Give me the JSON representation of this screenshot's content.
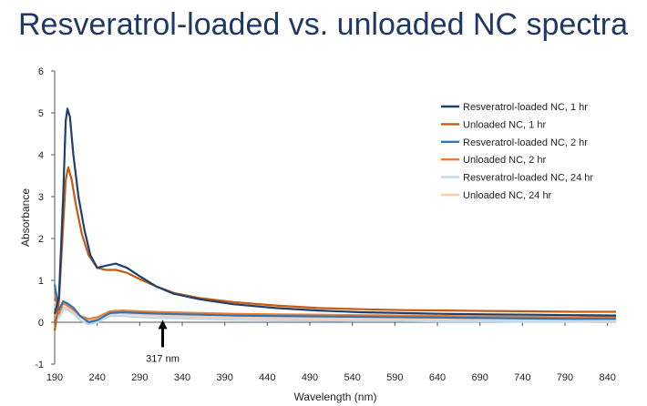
{
  "slide": {
    "title": "Resveratrol-loaded vs. unloaded NC spectra"
  },
  "chart_data": {
    "type": "line",
    "title": "",
    "xlabel": "Wavelength (nm)",
    "ylabel": "Absorbance",
    "xlim": [
      190,
      850
    ],
    "ylim": [
      -1,
      6
    ],
    "xticks": [
      190,
      240,
      290,
      340,
      390,
      440,
      490,
      540,
      590,
      640,
      690,
      740,
      790,
      840
    ],
    "yticks": [
      -1,
      0,
      1,
      2,
      3,
      4,
      5,
      6
    ],
    "grid": false,
    "legend_position": "top-right",
    "annotations": [
      {
        "text": "317 nm",
        "x": 317,
        "y": 0.1
      }
    ],
    "series": [
      {
        "name": "Resveratrol-loaded NC, 1 hr",
        "color": "#1f3f6e",
        "points": [
          [
            190,
            0.2
          ],
          [
            195,
            0.6
          ],
          [
            200,
            3.0
          ],
          [
            203,
            4.8
          ],
          [
            205,
            5.1
          ],
          [
            208,
            4.9
          ],
          [
            212,
            4.0
          ],
          [
            218,
            3.0
          ],
          [
            225,
            2.2
          ],
          [
            232,
            1.6
          ],
          [
            240,
            1.3
          ],
          [
            250,
            1.35
          ],
          [
            262,
            1.4
          ],
          [
            275,
            1.3
          ],
          [
            290,
            1.1
          ],
          [
            310,
            0.85
          ],
          [
            330,
            0.68
          ],
          [
            360,
            0.55
          ],
          [
            400,
            0.43
          ],
          [
            450,
            0.34
          ],
          [
            500,
            0.28
          ],
          [
            550,
            0.24
          ],
          [
            600,
            0.22
          ],
          [
            650,
            0.2
          ],
          [
            700,
            0.19
          ],
          [
            750,
            0.18
          ],
          [
            800,
            0.17
          ],
          [
            850,
            0.16
          ]
        ]
      },
      {
        "name": "Unloaded NC, 1 hr",
        "color": "#c55a11",
        "points": [
          [
            190,
            -0.2
          ],
          [
            195,
            0.5
          ],
          [
            200,
            2.3
          ],
          [
            203,
            3.4
          ],
          [
            206,
            3.7
          ],
          [
            210,
            3.4
          ],
          [
            215,
            2.8
          ],
          [
            222,
            2.1
          ],
          [
            230,
            1.6
          ],
          [
            240,
            1.3
          ],
          [
            250,
            1.25
          ],
          [
            262,
            1.25
          ],
          [
            275,
            1.18
          ],
          [
            290,
            1.03
          ],
          [
            310,
            0.85
          ],
          [
            330,
            0.7
          ],
          [
            360,
            0.58
          ],
          [
            400,
            0.48
          ],
          [
            450,
            0.4
          ],
          [
            500,
            0.34
          ],
          [
            550,
            0.31
          ],
          [
            600,
            0.29
          ],
          [
            650,
            0.28
          ],
          [
            700,
            0.27
          ],
          [
            750,
            0.26
          ],
          [
            800,
            0.25
          ],
          [
            850,
            0.25
          ]
        ]
      },
      {
        "name": "Resveratrol-loaded NC, 2 hr",
        "color": "#2e75b6",
        "points": [
          [
            190,
            0.9
          ],
          [
            195,
            0.3
          ],
          [
            200,
            0.5
          ],
          [
            205,
            0.45
          ],
          [
            212,
            0.35
          ],
          [
            220,
            0.15
          ],
          [
            230,
            0.0
          ],
          [
            240,
            0.05
          ],
          [
            255,
            0.22
          ],
          [
            270,
            0.24
          ],
          [
            290,
            0.22
          ],
          [
            320,
            0.2
          ],
          [
            360,
            0.18
          ],
          [
            400,
            0.16
          ],
          [
            450,
            0.15
          ],
          [
            500,
            0.14
          ],
          [
            550,
            0.13
          ],
          [
            600,
            0.12
          ],
          [
            650,
            0.11
          ],
          [
            700,
            0.1
          ],
          [
            750,
            0.09
          ],
          [
            800,
            0.08
          ],
          [
            850,
            0.08
          ]
        ]
      },
      {
        "name": "Unloaded NC, 2 hr",
        "color": "#ed7d31",
        "points": [
          [
            190,
            0.7
          ],
          [
            195,
            0.2
          ],
          [
            200,
            0.45
          ],
          [
            205,
            0.4
          ],
          [
            212,
            0.3
          ],
          [
            220,
            0.15
          ],
          [
            230,
            0.08
          ],
          [
            240,
            0.12
          ],
          [
            255,
            0.26
          ],
          [
            270,
            0.28
          ],
          [
            290,
            0.26
          ],
          [
            320,
            0.24
          ],
          [
            360,
            0.22
          ],
          [
            400,
            0.2
          ],
          [
            450,
            0.19
          ],
          [
            500,
            0.18
          ],
          [
            550,
            0.17
          ],
          [
            600,
            0.16
          ],
          [
            650,
            0.15
          ],
          [
            700,
            0.14
          ],
          [
            750,
            0.13
          ],
          [
            800,
            0.12
          ],
          [
            850,
            0.12
          ]
        ]
      },
      {
        "name": "Resveratrol-loaded NC, 24 hr",
        "color": "#bdd7ee",
        "points": [
          [
            190,
            0.4
          ],
          [
            195,
            0.1
          ],
          [
            200,
            0.3
          ],
          [
            205,
            0.3
          ],
          [
            212,
            0.2
          ],
          [
            220,
            0.05
          ],
          [
            230,
            -0.05
          ],
          [
            240,
            0.0
          ],
          [
            255,
            0.15
          ],
          [
            270,
            0.15
          ],
          [
            290,
            0.12
          ],
          [
            320,
            0.1
          ],
          [
            360,
            0.08
          ],
          [
            400,
            0.06
          ],
          [
            450,
            0.05
          ],
          [
            500,
            0.04
          ],
          [
            550,
            0.03
          ],
          [
            600,
            0.03
          ],
          [
            650,
            0.02
          ],
          [
            700,
            0.02
          ],
          [
            750,
            0.01
          ],
          [
            800,
            0.01
          ],
          [
            850,
            0.0
          ]
        ]
      },
      {
        "name": "Unloaded NC, 24 hr",
        "color": "#f8cbad",
        "points": [
          [
            190,
            0.5
          ],
          [
            195,
            0.15
          ],
          [
            200,
            0.35
          ],
          [
            205,
            0.35
          ],
          [
            212,
            0.25
          ],
          [
            220,
            0.12
          ],
          [
            230,
            0.05
          ],
          [
            240,
            0.08
          ],
          [
            255,
            0.2
          ],
          [
            270,
            0.21
          ],
          [
            290,
            0.18
          ],
          [
            320,
            0.15
          ],
          [
            360,
            0.13
          ],
          [
            400,
            0.11
          ],
          [
            450,
            0.1
          ],
          [
            500,
            0.09
          ],
          [
            550,
            0.08
          ],
          [
            600,
            0.08
          ],
          [
            650,
            0.07
          ],
          [
            700,
            0.07
          ],
          [
            750,
            0.06
          ],
          [
            800,
            0.06
          ],
          [
            850,
            0.05
          ]
        ]
      }
    ]
  }
}
